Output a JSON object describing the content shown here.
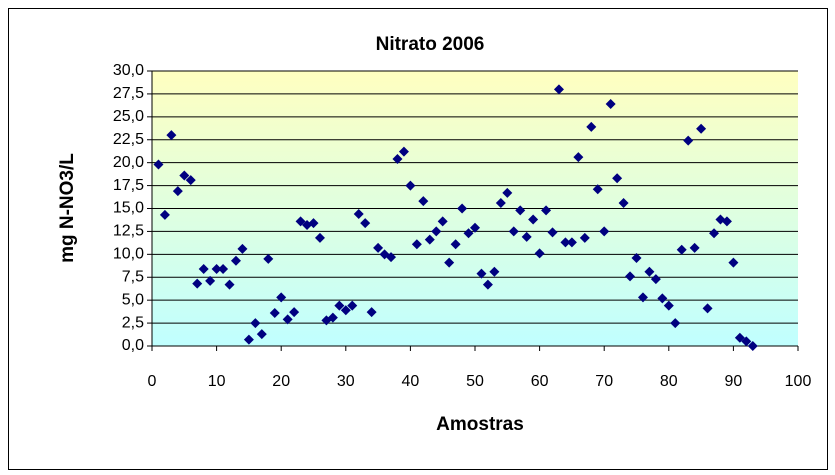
{
  "chart_data": {
    "type": "scatter",
    "title": "Nitrato 2006",
    "x_label": "Amostras",
    "y_label": "mg N-NO3/L",
    "color": "#000080",
    "grid": true,
    "xlim": [
      0,
      100
    ],
    "xticks": [
      0,
      10,
      20,
      30,
      40,
      50,
      60,
      70,
      80,
      90,
      100
    ],
    "ylim": [
      0,
      30
    ],
    "yticks": [
      {
        "value": 0,
        "label": "0,0"
      },
      {
        "value": 2.5,
        "label": "2,5"
      },
      {
        "value": 5,
        "label": "5,0"
      },
      {
        "value": 7.5,
        "label": "7,5"
      },
      {
        "value": 10,
        "label": "10,0"
      },
      {
        "value": 12.5,
        "label": "12,5"
      },
      {
        "value": 15,
        "label": "15,0"
      },
      {
        "value": 17.5,
        "label": "17,5"
      },
      {
        "value": 20,
        "label": "20,0"
      },
      {
        "value": 22.5,
        "label": "22,5"
      },
      {
        "value": 25,
        "label": "25,0"
      },
      {
        "value": 27.5,
        "label": "27,5"
      },
      {
        "value": 30,
        "label": "30,0"
      }
    ],
    "x": [
      1,
      2,
      3,
      4,
      5,
      6,
      7,
      8,
      9,
      10,
      11,
      12,
      13,
      14,
      15,
      16,
      17,
      18,
      19,
      20,
      21,
      22,
      23,
      24,
      25,
      26,
      27,
      28,
      29,
      30,
      31,
      32,
      33,
      34,
      35,
      36,
      37,
      38,
      39,
      40,
      41,
      42,
      43,
      44,
      45,
      46,
      47,
      48,
      49,
      50,
      51,
      52,
      53,
      54,
      55,
      56,
      57,
      58,
      59,
      60,
      61,
      62,
      63,
      64,
      65,
      66,
      67,
      68,
      69,
      70,
      71,
      72,
      73,
      74,
      75,
      76,
      77,
      78,
      79,
      80,
      81,
      82,
      83,
      84,
      85,
      86,
      87,
      88,
      89,
      90,
      91,
      92,
      93
    ],
    "values": [
      19.8,
      14.3,
      23.0,
      16.9,
      18.6,
      18.1,
      6.8,
      8.4,
      7.1,
      8.4,
      8.4,
      6.7,
      9.3,
      10.6,
      0.7,
      2.5,
      1.3,
      9.5,
      3.6,
      5.3,
      2.9,
      3.7,
      13.6,
      13.2,
      13.4,
      11.8,
      2.8,
      3.1,
      4.4,
      3.9,
      4.4,
      14.4,
      13.4,
      3.7,
      10.7,
      10.0,
      9.7,
      20.4,
      21.2,
      17.5,
      11.1,
      15.8,
      11.6,
      12.5,
      13.6,
      9.1,
      11.1,
      15.0,
      12.3,
      12.9,
      7.9,
      6.7,
      8.1,
      15.6,
      16.7,
      12.5,
      14.8,
      11.9,
      13.8,
      10.1,
      14.8,
      12.4,
      28.0,
      11.3,
      11.3,
      20.6,
      11.8,
      23.9,
      17.1,
      12.5,
      26.4,
      18.3,
      15.6,
      7.6,
      9.6,
      5.3,
      8.1,
      7.3,
      5.2,
      4.4,
      2.5,
      10.5,
      22.4,
      10.7,
      23.7,
      4.1,
      12.3,
      13.8,
      13.6,
      9.1,
      0.9,
      0.5,
      0.0
    ]
  }
}
